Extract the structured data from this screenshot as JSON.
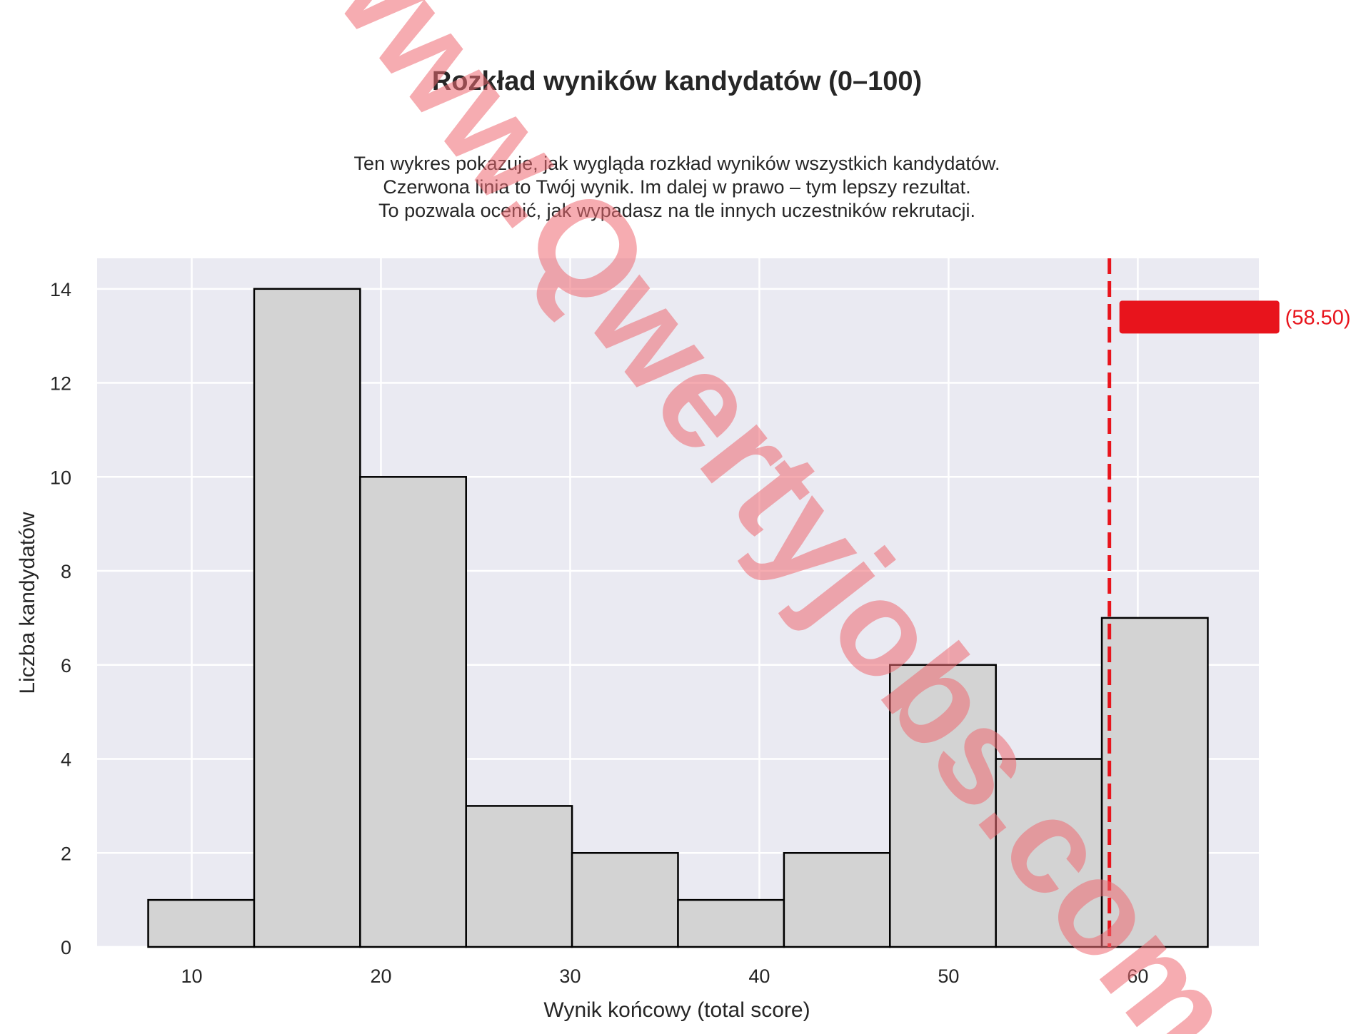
{
  "chart_data": {
    "type": "bar",
    "title": "Rozkład wyników kandydatów (0–100)",
    "subtitle_lines": [
      "Ten wykres pokazuje, jak wygląda rozkład wyników wszystkich kandydatów.",
      "Czerwona linia to Twój wynik. Im dalej w prawo – tym lepszy rezultat.",
      "To pozwala ocenić, jak wypadasz na tle innych uczestników rekrutacji."
    ],
    "xlabel": "Wynik końcowy (total score)",
    "ylabel": "Liczba kandydatów",
    "x_ticks": [
      10,
      20,
      30,
      40,
      50,
      60
    ],
    "y_ticks": [
      0,
      2,
      4,
      6,
      8,
      10,
      12,
      14
    ],
    "xlim": [
      5,
      66.4
    ],
    "ylim": [
      0,
      14.65
    ],
    "bins": [
      {
        "start": 7.7,
        "end": 13.3,
        "count": 1
      },
      {
        "start": 13.3,
        "end": 18.9,
        "count": 14
      },
      {
        "start": 18.9,
        "end": 24.5,
        "count": 10
      },
      {
        "start": 24.5,
        "end": 30.1,
        "count": 3
      },
      {
        "start": 30.1,
        "end": 35.7,
        "count": 2
      },
      {
        "start": 35.7,
        "end": 41.3,
        "count": 1
      },
      {
        "start": 41.3,
        "end": 46.9,
        "count": 2
      },
      {
        "start": 46.9,
        "end": 52.5,
        "count": 6
      },
      {
        "start": 52.5,
        "end": 58.1,
        "count": 4
      },
      {
        "start": 58.1,
        "end": 63.7,
        "count": 7
      }
    ],
    "marker": {
      "value": 58.5,
      "label": "(58.50)"
    },
    "grid": true,
    "colors": {
      "background": "#eaeaf2",
      "grid": "#ffffff",
      "bar_fill": "#d3d3d3",
      "bar_edge": "#000000",
      "marker": "#e8141c"
    }
  },
  "watermark": "www.Qwertyjobs.com"
}
